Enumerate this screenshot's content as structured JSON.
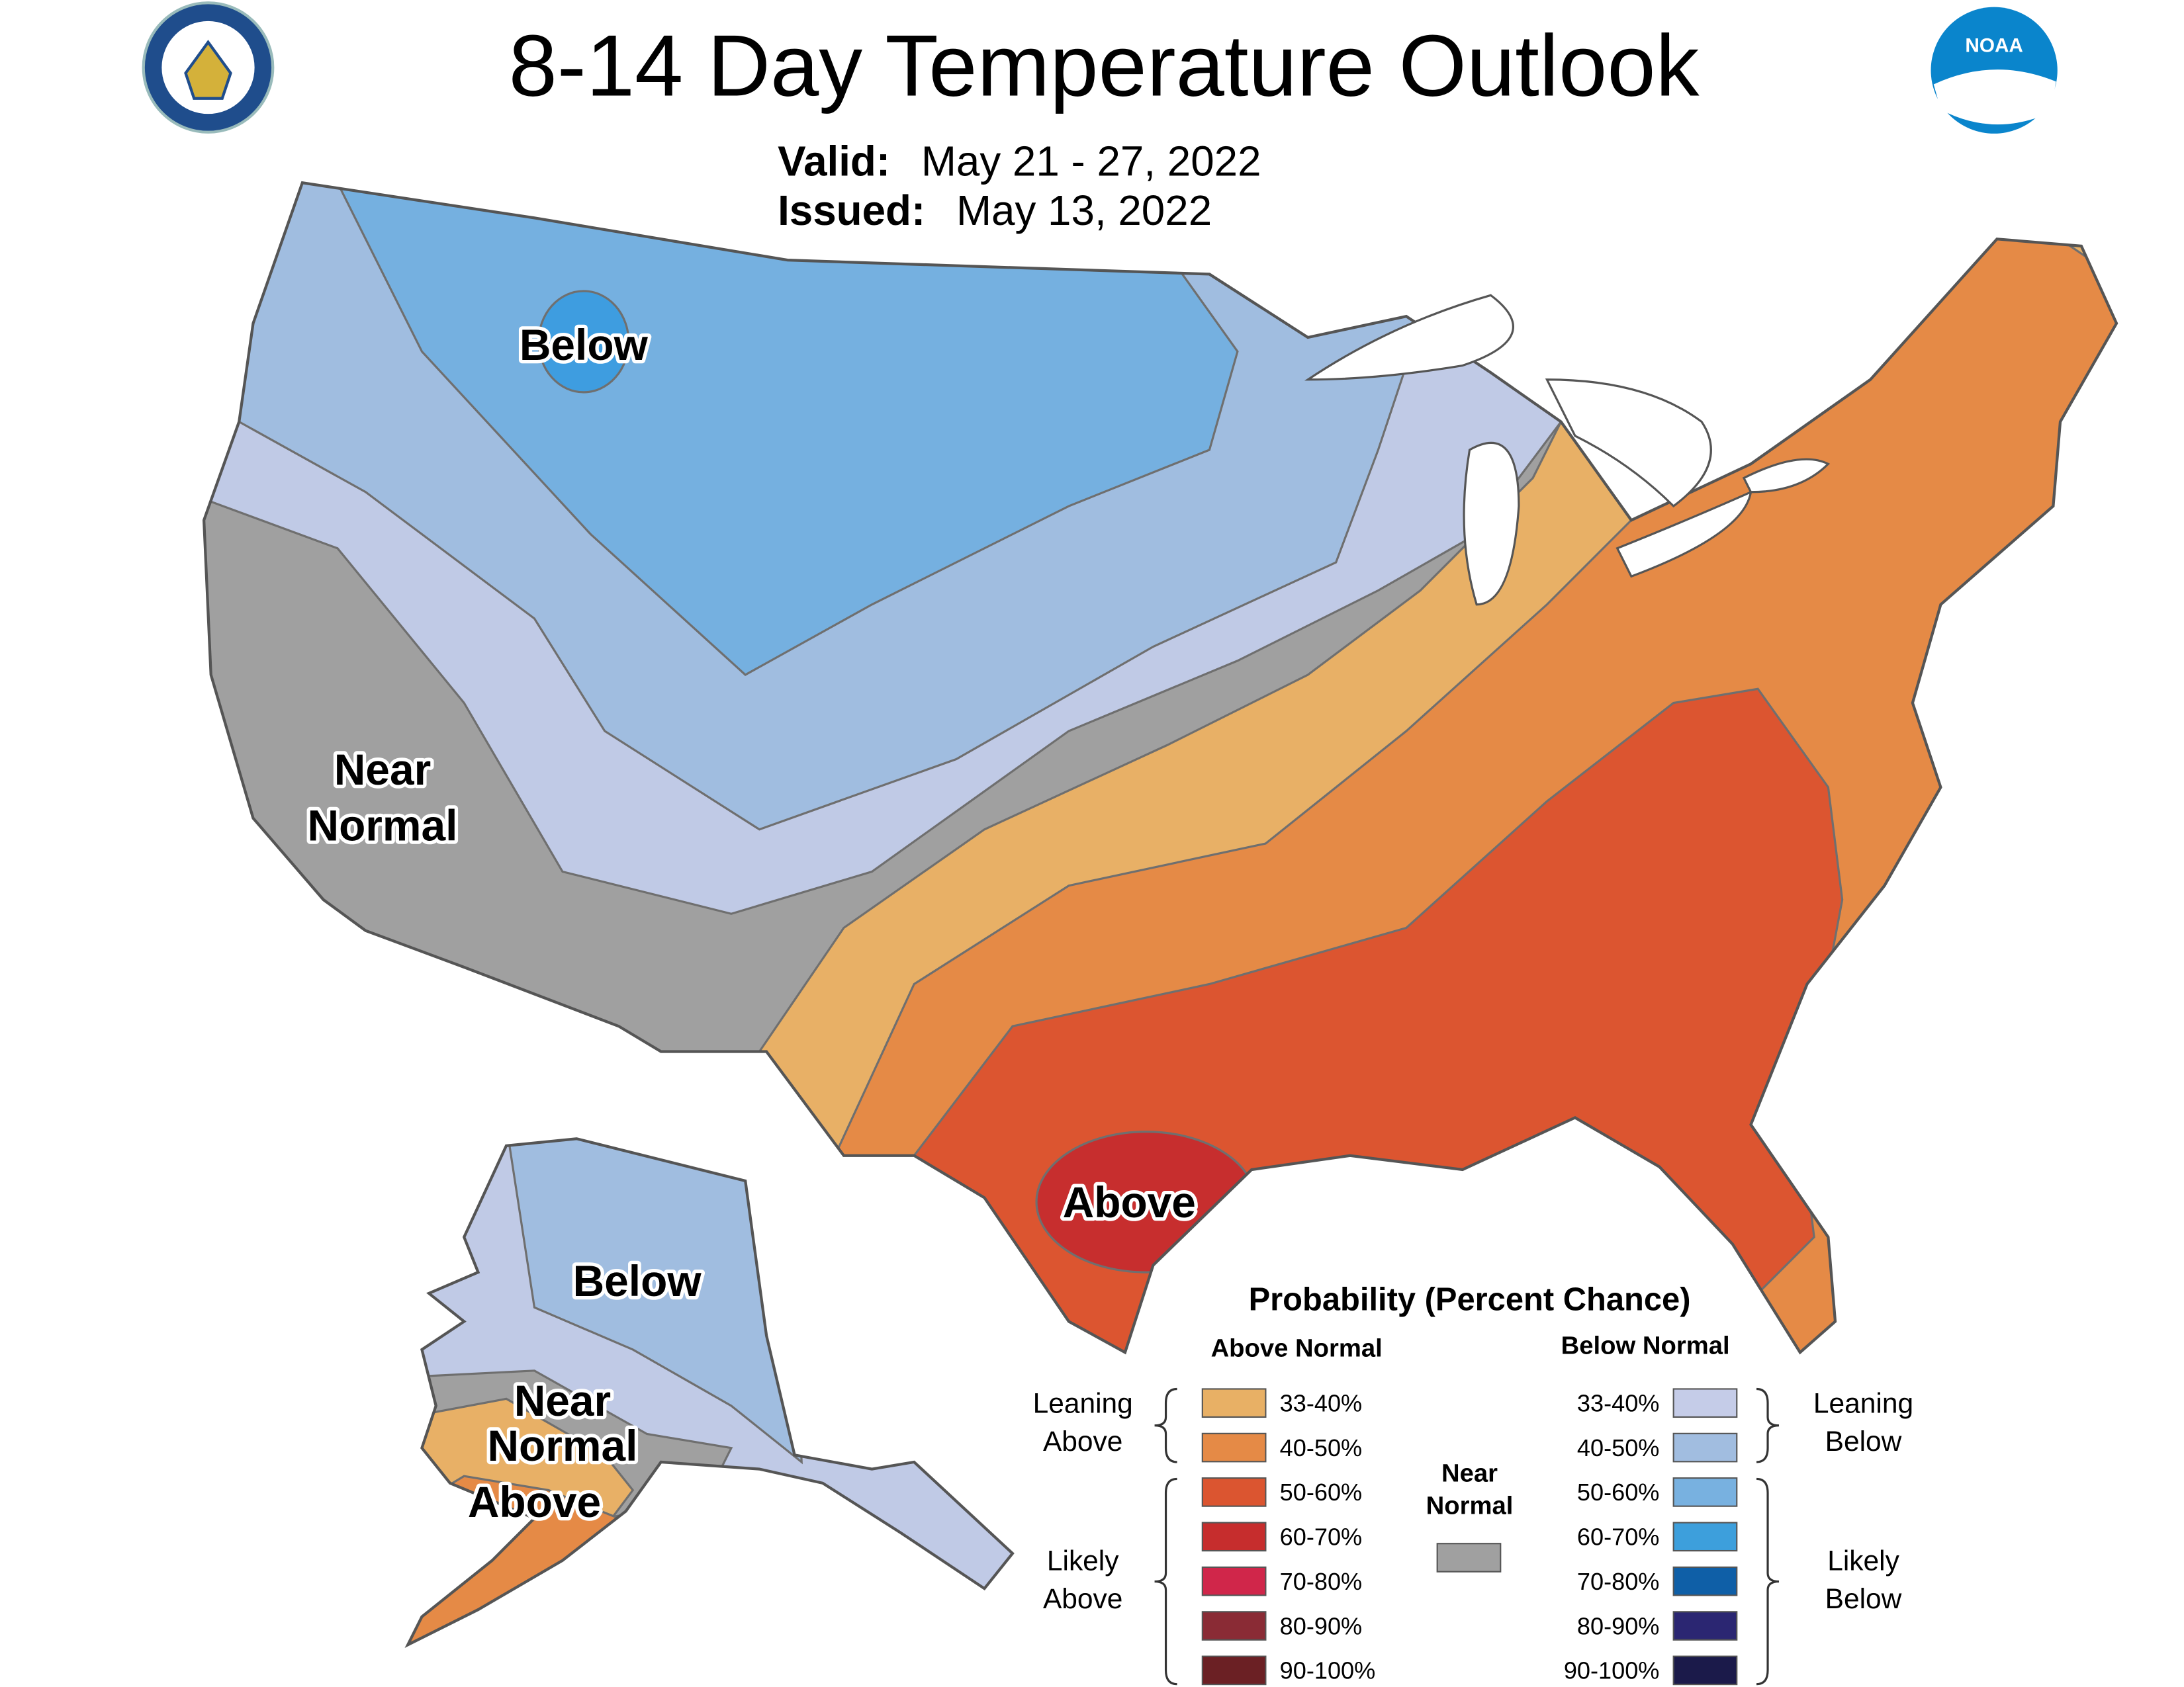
{
  "header": {
    "title": "8-14 Day Temperature Outlook",
    "valid_label": "Valid:",
    "valid": "May 21 - 27, 2022",
    "issued_label": "Issued:",
    "issued": "May 13, 2022"
  },
  "logos": {
    "noaa": "NOAA"
  },
  "map": {
    "labels": {
      "conus_below": [
        "Below"
      ],
      "conus_near": [
        "Near",
        "Normal"
      ],
      "conus_above": [
        "Above"
      ],
      "alaska_below": [
        "Below"
      ],
      "alaska_near": [
        "Near",
        "Normal"
      ],
      "alaska_above": [
        "Above"
      ]
    }
  },
  "legend": {
    "title": "Probability (Percent Chance)",
    "above": {
      "heading": "Above Normal",
      "items": [
        {
          "label": "33-40%",
          "color": "#e8b065"
        },
        {
          "label": "40-50%",
          "color": "#e58a46"
        },
        {
          "label": "50-60%",
          "color": "#db5530"
        },
        {
          "label": "60-70%",
          "color": "#c62d2d"
        },
        {
          "label": "70-80%",
          "color": "#d0264a"
        },
        {
          "label": "80-90%",
          "color": "#8a2b35"
        },
        {
          "label": "90-100%",
          "color": "#6b2024"
        }
      ]
    },
    "below": {
      "heading": "Below Normal",
      "items": [
        {
          "label": "33-40%",
          "color": "#c5cce8"
        },
        {
          "label": "40-50%",
          "color": "#a1bde0"
        },
        {
          "label": "50-60%",
          "color": "#78b1e0"
        },
        {
          "label": "60-70%",
          "color": "#3d9fdc"
        },
        {
          "label": "70-80%",
          "color": "#0f5fa7"
        },
        {
          "label": "80-90%",
          "color": "#2b2672"
        },
        {
          "label": "90-100%",
          "color": "#1b1a4a"
        }
      ]
    },
    "near": {
      "label": [
        "Near",
        "Normal"
      ],
      "color": "#a0a0a0"
    },
    "brackets": {
      "leaning_above": [
        "Leaning",
        "Above"
      ],
      "likely_above": [
        "Likely",
        "Above"
      ],
      "leaning_below": [
        "Leaning",
        "Below"
      ],
      "likely_below": [
        "Likely",
        "Below"
      ]
    }
  }
}
